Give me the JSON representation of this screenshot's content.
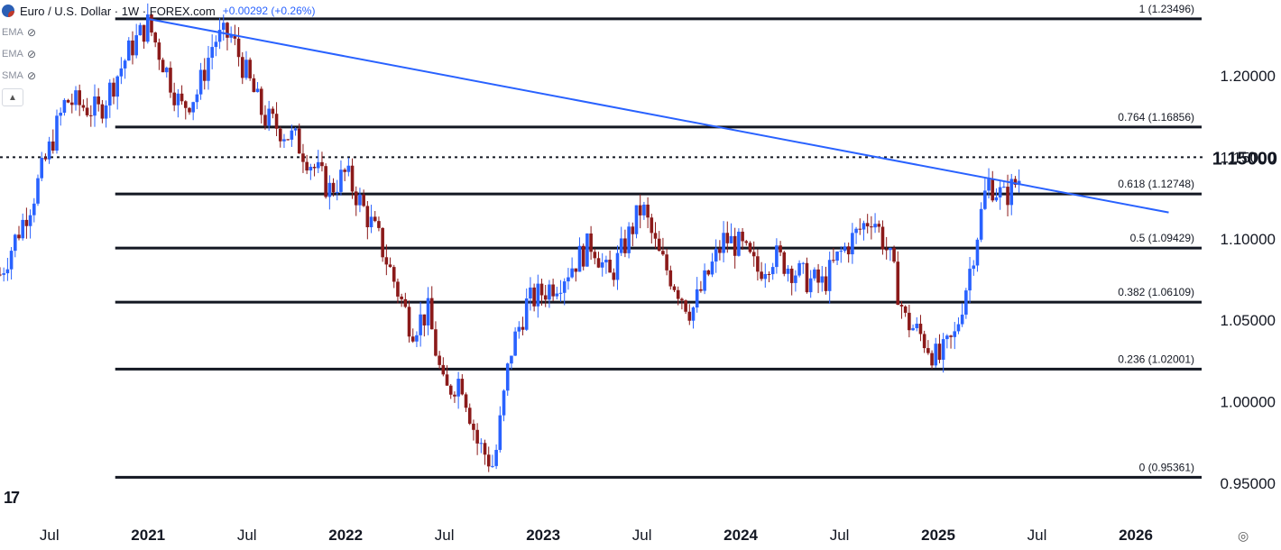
{
  "header": {
    "symbol_title": "Euro / U.S. Dollar · 1W · FOREX.com",
    "change": "+0.00292 (+0.26%)",
    "indicators": [
      {
        "name": "EMA",
        "icon": "eye-hidden-icon"
      },
      {
        "name": "EMA",
        "icon": "eye-hidden-icon"
      },
      {
        "name": "SMA",
        "icon": "eye-hidden-icon"
      }
    ],
    "collapse_icon": "chevron-up-icon"
  },
  "colors": {
    "up": "#2962ff",
    "down": "#8b1a1a",
    "trendline": "#2962ff",
    "fib": "#131722"
  },
  "chart_data": {
    "type": "candlestick",
    "title": "Euro / U.S. Dollar · 1W · FOREX.com",
    "ylim": [
      0.93,
      1.2465
    ],
    "y_ticks": [
      "1.20000",
      "1.15000",
      "1.10000",
      "1.05000",
      "1.00000",
      "0.95000"
    ],
    "y_tick_values": [
      1.2,
      1.15,
      1.1,
      1.05,
      1.0,
      0.95
    ],
    "current_price_label": "1.15000",
    "current_price": 1.15,
    "x_ticks": [
      {
        "label": "Jul",
        "date": "2020-07"
      },
      {
        "label": "2021",
        "date": "2021-01"
      },
      {
        "label": "Jul",
        "date": "2021-07"
      },
      {
        "label": "2022",
        "date": "2022-01"
      },
      {
        "label": "Jul",
        "date": "2022-07"
      },
      {
        "label": "2023",
        "date": "2023-01"
      },
      {
        "label": "Jul",
        "date": "2023-07"
      },
      {
        "label": "2024",
        "date": "2024-01"
      },
      {
        "label": "Jul",
        "date": "2024-07"
      },
      {
        "label": "2025",
        "date": "2025-01"
      },
      {
        "label": "Jul",
        "date": "2025-07"
      },
      {
        "label": "2026",
        "date": "2026-01"
      }
    ],
    "x_range": [
      "2020-04",
      "2026-05"
    ],
    "fib_start": "2020-11",
    "fib_levels": [
      {
        "label": "1 (1.23496)",
        "value": 1.23496
      },
      {
        "label": "0.764 (1.16856)",
        "value": 1.16856
      },
      {
        "label": "0.618 (1.12748)",
        "value": 1.12748
      },
      {
        "label": "0.5 (1.09429)",
        "value": 1.09429
      },
      {
        "label": "0.382 (1.06109)",
        "value": 1.06109
      },
      {
        "label": "0.236 (1.02001)",
        "value": 1.02001
      },
      {
        "label": "0 (0.95361)",
        "value": 0.95361
      }
    ],
    "trendline": {
      "start": {
        "date": "2021-01",
        "value": 1.2349
      },
      "end": {
        "date": "2026-03",
        "value": 1.1161
      }
    },
    "price_path": [
      [
        "2020-04",
        1.078
      ],
      [
        "2020-06",
        1.125
      ],
      [
        "2020-08",
        1.185
      ],
      [
        "2020-10",
        1.178
      ],
      [
        "2020-12",
        1.218
      ],
      [
        "2021-01",
        1.232
      ],
      [
        "2021-03",
        1.18
      ],
      [
        "2021-04",
        1.19
      ],
      [
        "2021-05",
        1.222
      ],
      [
        "2021-06",
        1.225
      ],
      [
        "2021-08",
        1.175
      ],
      [
        "2021-10",
        1.16
      ],
      [
        "2021-12",
        1.13
      ],
      [
        "2022-01",
        1.14
      ],
      [
        "2022-03",
        1.1
      ],
      [
        "2022-05",
        1.045
      ],
      [
        "2022-06",
        1.055
      ],
      [
        "2022-07",
        1.005
      ],
      [
        "2022-08",
        1.015
      ],
      [
        "2022-09",
        0.975
      ],
      [
        "2022-10",
        0.96
      ],
      [
        "2022-11",
        1.03
      ],
      [
        "2022-12",
        1.06
      ],
      [
        "2023-02",
        1.075
      ],
      [
        "2023-04",
        1.098
      ],
      [
        "2023-05",
        1.075
      ],
      [
        "2023-07",
        1.12
      ],
      [
        "2023-08",
        1.09
      ],
      [
        "2023-10",
        1.055
      ],
      [
        "2023-12",
        1.1
      ],
      [
        "2024-01",
        1.095
      ],
      [
        "2024-02",
        1.08
      ],
      [
        "2024-03",
        1.09
      ],
      [
        "2024-05",
        1.075
      ],
      [
        "2024-06",
        1.072
      ],
      [
        "2024-07",
        1.09
      ],
      [
        "2024-09",
        1.115
      ],
      [
        "2024-10",
        1.09
      ],
      [
        "2024-11",
        1.05
      ],
      [
        "2024-12",
        1.04
      ],
      [
        "2025-01",
        1.025
      ],
      [
        "2025-02",
        1.04
      ],
      [
        "2025-03",
        1.085
      ],
      [
        "2025-04",
        1.135
      ],
      [
        "2025-05",
        1.125
      ],
      [
        "2025-06",
        1.138
      ]
    ]
  }
}
